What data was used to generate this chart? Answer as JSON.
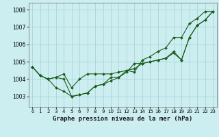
{
  "xlabel": "Graphe pression niveau de la mer (hPa)",
  "background_color": "#cceef0",
  "grid_color": "#aad4d8",
  "line_color": "#1a5c1a",
  "ylim": [
    1002.4,
    1008.4
  ],
  "xlim": [
    -0.5,
    23.5
  ],
  "yticks": [
    1003,
    1004,
    1005,
    1006,
    1007,
    1008
  ],
  "xticks": [
    0,
    1,
    2,
    3,
    4,
    5,
    6,
    7,
    8,
    9,
    10,
    11,
    12,
    13,
    14,
    15,
    16,
    17,
    18,
    19,
    20,
    21,
    22,
    23
  ],
  "series": [
    [
      1004.7,
      1004.2,
      1004.0,
      1004.1,
      1004.0,
      1003.0,
      1003.1,
      1003.2,
      1003.6,
      1003.7,
      1003.9,
      1004.1,
      1004.4,
      1004.9,
      1004.9,
      1005.0,
      1005.1,
      1005.2,
      1005.6,
      1005.1,
      1006.4,
      1007.1,
      1007.4,
      1007.9
    ],
    [
      1004.7,
      1004.2,
      1004.0,
      1004.1,
      1004.3,
      1003.5,
      1004.0,
      1004.3,
      1004.3,
      1004.3,
      1004.3,
      1004.4,
      1004.5,
      1004.6,
      1004.9,
      1005.0,
      1005.1,
      1005.2,
      1005.5,
      1005.1,
      1006.4,
      1007.1,
      1007.4,
      1007.9
    ],
    [
      1004.7,
      1004.2,
      1004.0,
      1003.5,
      1003.3,
      1003.0,
      1003.1,
      1003.2,
      1003.6,
      1003.7,
      1004.1,
      1004.1,
      1004.5,
      1004.4,
      1005.1,
      1005.3,
      1005.6,
      1005.8,
      1006.4,
      1006.4,
      1007.2,
      1007.5,
      1007.9,
      1007.9
    ]
  ]
}
